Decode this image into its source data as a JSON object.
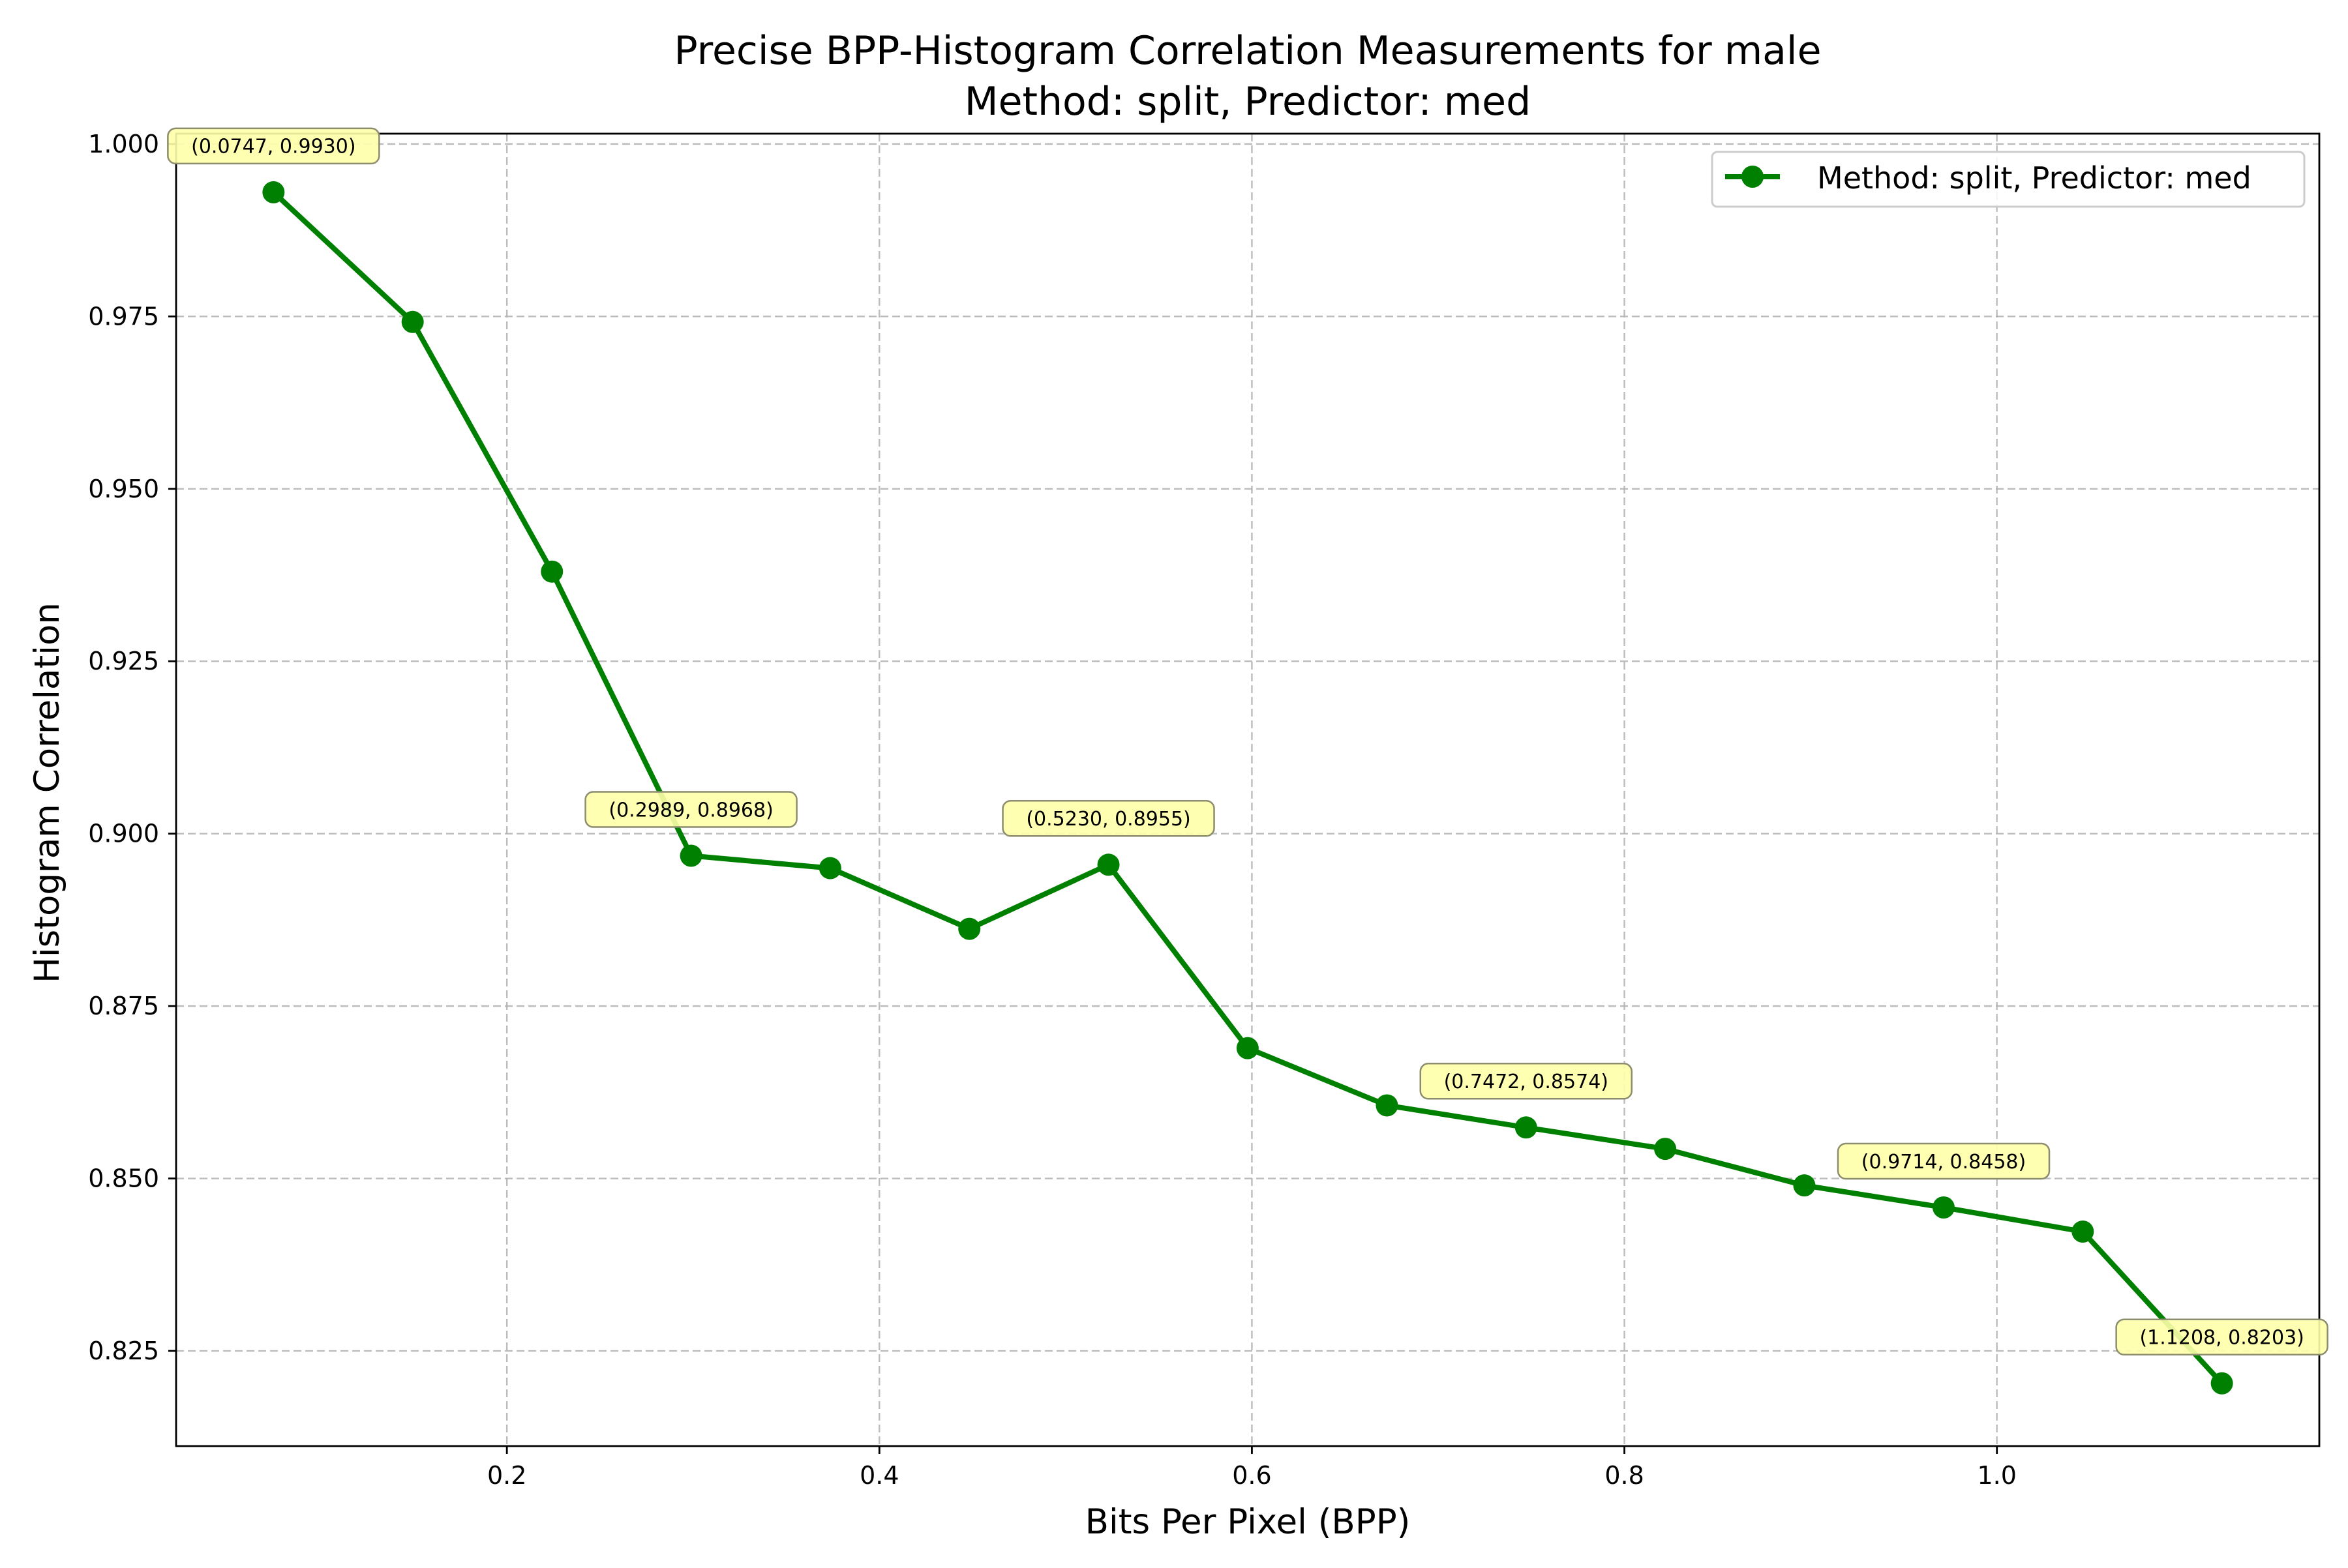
{
  "chart_data": {
    "type": "line",
    "title": "Precise BPP-Histogram Correlation Measurements for male",
    "subtitle": "Method: split, Predictor: med",
    "xlabel": "Bits Per Pixel (BPP)",
    "ylabel": "Histogram Correlation",
    "xlim": [
      0.0224,
      1.1731
    ],
    "ylim": [
      0.8112,
      1.0015
    ],
    "x_ticks": [
      0.2,
      0.4,
      0.6,
      0.8,
      1.0
    ],
    "x_tick_labels": [
      "0.2",
      "0.4",
      "0.6",
      "0.8",
      "1.0"
    ],
    "y_ticks": [
      0.825,
      0.85,
      0.875,
      0.9,
      0.925,
      0.95,
      0.975,
      1.0
    ],
    "y_tick_labels": [
      "0.825",
      "0.850",
      "0.875",
      "0.900",
      "0.925",
      "0.950",
      "0.975",
      "1.000"
    ],
    "grid": true,
    "legend_position": "top-right",
    "series": [
      {
        "name": "Method: split, Predictor: med",
        "color": "#008000",
        "x": [
          0.0747,
          0.1494,
          0.2242,
          0.2989,
          0.3736,
          0.4483,
          0.523,
          0.5977,
          0.6725,
          0.7472,
          0.8219,
          0.8966,
          0.9714,
          1.0461,
          1.1208
        ],
        "y": [
          0.993,
          0.9742,
          0.938,
          0.8968,
          0.895,
          0.8862,
          0.8955,
          0.8689,
          0.8606,
          0.8574,
          0.8543,
          0.849,
          0.8458,
          0.8423,
          0.8203
        ]
      }
    ],
    "annotations": [
      {
        "x": 0.0747,
        "y": 0.993,
        "text": "(0.0747, 0.9930)"
      },
      {
        "x": 0.2989,
        "y": 0.8968,
        "text": "(0.2989, 0.8968)"
      },
      {
        "x": 0.523,
        "y": 0.8955,
        "text": "(0.5230, 0.8955)"
      },
      {
        "x": 0.7472,
        "y": 0.8574,
        "text": "(0.7472, 0.8574)"
      },
      {
        "x": 0.9714,
        "y": 0.8458,
        "text": "(0.9714, 0.8458)"
      },
      {
        "x": 1.1208,
        "y": 0.8203,
        "text": "(1.1208, 0.8203)"
      }
    ],
    "colors": {
      "line": "#008000",
      "grid": "#b0b0b0",
      "annotation_fill": "#ffffaa",
      "annotation_stroke": "#8c8c6e",
      "legend_border": "#cccccc"
    }
  }
}
